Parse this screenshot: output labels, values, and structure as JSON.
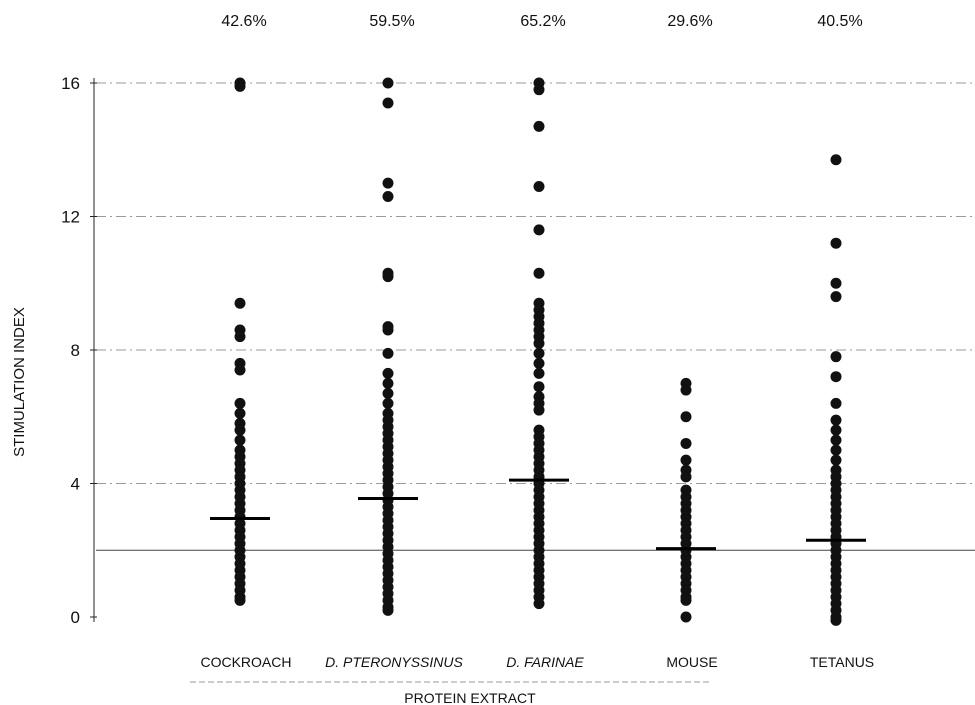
{
  "chart_data": {
    "type": "scatter",
    "title": "",
    "xlabel": "PROTEIN EXTRACT",
    "ylabel": "STIMULATION INDEX",
    "ylim": [
      0,
      16
    ],
    "yticks": [
      0,
      4,
      8,
      12,
      16
    ],
    "ytick_labels": [
      "0",
      "4",
      "8",
      "12",
      "16"
    ],
    "grid": true,
    "reference_line": 2,
    "categories": [
      {
        "label": "COCKROACH",
        "italic": false
      },
      {
        "label": "D. PTERONYSSINUS",
        "italic": true
      },
      {
        "label": "D. FARINAE",
        "italic": true
      },
      {
        "label": "MOUSE",
        "italic": false
      },
      {
        "label": "TETANUS",
        "italic": false
      }
    ],
    "percent_labels": [
      "42.6%",
      "59.5%",
      "65.2%",
      "29.6%",
      "40.5%"
    ],
    "means": [
      2.95,
      3.55,
      4.1,
      2.05,
      2.3
    ],
    "series": [
      {
        "values": [
          16.0,
          15.9,
          9.4,
          8.6,
          8.4,
          7.6,
          7.4,
          6.4,
          6.1,
          5.8,
          5.6,
          5.3,
          5.0,
          4.8,
          4.6,
          4.4,
          4.2,
          4.0,
          3.8,
          3.6,
          3.4,
          3.2,
          3.0,
          2.8,
          2.6,
          2.4,
          2.2,
          2.0,
          1.8,
          1.6,
          1.4,
          1.2,
          1.0,
          0.8,
          0.6,
          0.5
        ]
      },
      {
        "values": [
          16.0,
          15.4,
          13.0,
          12.6,
          10.3,
          10.2,
          8.7,
          8.6,
          7.9,
          7.3,
          7.0,
          6.7,
          6.4,
          6.1,
          5.9,
          5.7,
          5.5,
          5.3,
          5.1,
          4.9,
          4.7,
          4.5,
          4.3,
          4.1,
          3.9,
          3.7,
          3.5,
          3.3,
          3.1,
          2.9,
          2.7,
          2.5,
          2.3,
          2.1,
          1.9,
          1.7,
          1.5,
          1.3,
          1.1,
          0.9,
          0.7,
          0.5,
          0.3,
          0.2
        ]
      },
      {
        "values": [
          16.0,
          15.8,
          14.7,
          12.9,
          11.6,
          10.3,
          9.4,
          9.2,
          9.0,
          8.8,
          8.6,
          8.4,
          8.2,
          7.9,
          7.6,
          7.3,
          6.9,
          6.6,
          6.4,
          6.2,
          5.6,
          5.4,
          5.2,
          5.0,
          4.8,
          4.6,
          4.4,
          4.2,
          4.0,
          3.8,
          3.6,
          3.4,
          3.2,
          3.0,
          2.8,
          2.6,
          2.4,
          2.2,
          2.0,
          1.8,
          1.6,
          1.4,
          1.2,
          1.0,
          0.8,
          0.6,
          0.4
        ]
      },
      {
        "values": [
          7.0,
          6.8,
          6.0,
          5.2,
          4.7,
          4.4,
          4.2,
          3.8,
          3.6,
          3.4,
          3.2,
          3.0,
          2.8,
          2.6,
          2.4,
          2.2,
          2.0,
          1.8,
          1.6,
          1.4,
          1.2,
          1.0,
          0.8,
          0.6,
          0.5,
          0.0
        ]
      },
      {
        "values": [
          13.7,
          11.2,
          10.0,
          9.6,
          7.8,
          7.2,
          6.4,
          5.9,
          5.6,
          5.3,
          5.0,
          4.7,
          4.4,
          4.2,
          4.0,
          3.8,
          3.6,
          3.4,
          3.2,
          3.0,
          2.8,
          2.6,
          2.4,
          2.2,
          2.0,
          1.8,
          1.6,
          1.4,
          1.2,
          1.0,
          0.8,
          0.6,
          0.4,
          0.2,
          0.0,
          -0.1
        ]
      }
    ]
  }
}
